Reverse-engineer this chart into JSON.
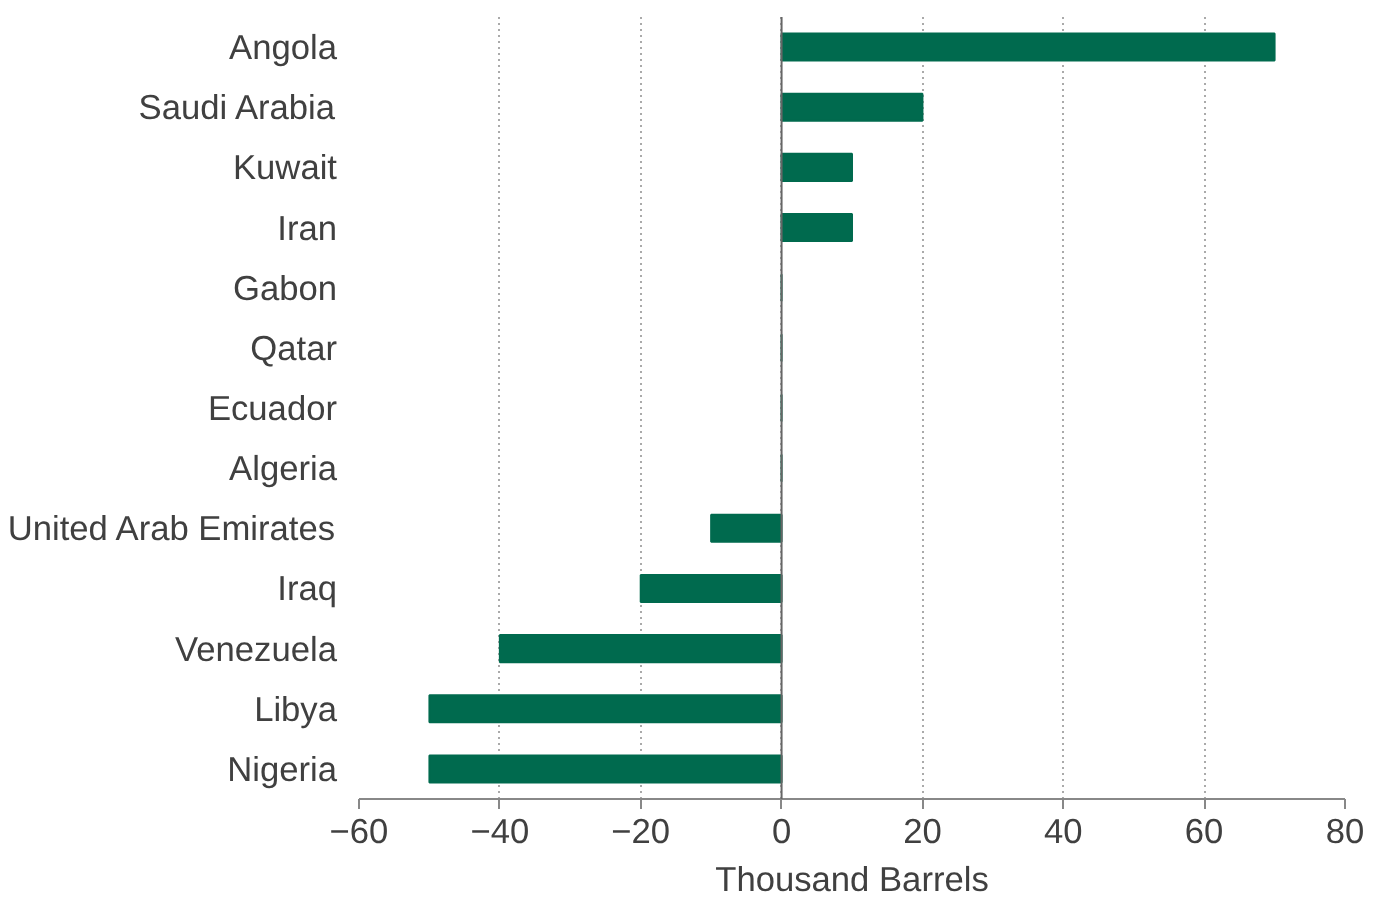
{
  "chart_data": {
    "type": "bar",
    "orientation": "horizontal",
    "xlabel": "Thousand Barrels",
    "categories": [
      "Angola",
      "Saudi Arabia",
      "Kuwait",
      "Iran",
      "Gabon",
      "Qatar",
      "Ecuador",
      "Algeria",
      "United Arab Emirates",
      "Iraq",
      "Venezuela",
      "Libya",
      "Nigeria"
    ],
    "values": [
      70,
      20,
      10,
      10,
      0,
      0,
      0,
      0,
      -10,
      -20,
      -40,
      -50,
      -50
    ],
    "color": "#006a4e",
    "xlim": [
      -60,
      80
    ],
    "xticks": [
      -60,
      -40,
      -20,
      0,
      20,
      40,
      60,
      80
    ],
    "grid": "x"
  }
}
